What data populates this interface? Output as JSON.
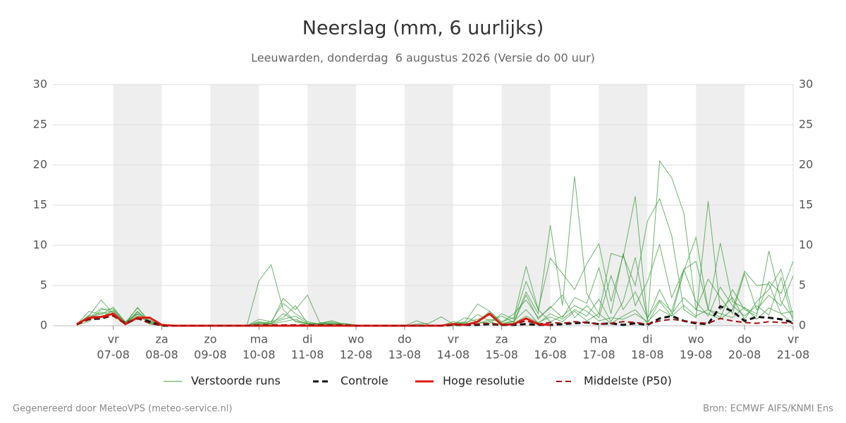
{
  "chart_data": {
    "type": "line",
    "title": "Neerslag (mm, 6 uurlijks)",
    "subtitle": "Leeuwarden, donderdag  6 augustus 2026 (Versie do 00 uur)",
    "footer_left": "Gegenereerd door MeteoVPS (meteo-service.nl)",
    "footer_right": "Bron: ECMWF AIFS/KNMI Ens",
    "categories": [
      null,
      null,
      null,
      "07-08",
      null,
      null,
      null,
      "08-08",
      null,
      null,
      null,
      "09-08",
      null,
      null,
      null,
      "10-08",
      null,
      null,
      null,
      "11-08",
      null,
      null,
      null,
      "12-08",
      null,
      null,
      null,
      "13-08",
      null,
      null,
      null,
      "14-08",
      null,
      null,
      null,
      "15-08",
      null,
      null,
      null,
      "16-08",
      null,
      null,
      null,
      "17-08",
      null,
      null,
      null,
      "18-08",
      null,
      null,
      null,
      "19-08",
      null,
      null,
      null,
      "20-08",
      null,
      null,
      null,
      "21-08"
    ],
    "weekdays": [
      null,
      null,
      null,
      "vr",
      null,
      null,
      null,
      "za",
      null,
      null,
      null,
      "zo",
      null,
      null,
      null,
      "ma",
      null,
      null,
      null,
      "di",
      null,
      null,
      null,
      "wo",
      null,
      null,
      null,
      "do",
      null,
      null,
      null,
      "vr",
      null,
      null,
      null,
      "za",
      null,
      null,
      null,
      "zo",
      null,
      null,
      null,
      "ma",
      null,
      null,
      null,
      "di",
      null,
      null,
      null,
      "wo",
      null,
      null,
      null,
      "do",
      null,
      null,
      null,
      "vr"
    ],
    "ylim": [
      0,
      30
    ],
    "yticks": [
      0,
      5,
      10,
      15,
      20,
      25,
      30
    ],
    "grid": true,
    "ensemble": {
      "name": "Verstoorde runs",
      "color": "#3c9c3c",
      "runs": [
        [
          0.2,
          1.8,
          1.4,
          2.3,
          0.4,
          2.2,
          0.6,
          0,
          0,
          0,
          0,
          0,
          0,
          0,
          0,
          5.6,
          7.6,
          2,
          0.5,
          0.2,
          0.3,
          0.6,
          0.2,
          0.1,
          0,
          0,
          0,
          0,
          0,
          0,
          0,
          0.3,
          0.5,
          2.7,
          1.8,
          0.5,
          1,
          7.4,
          2,
          0.5,
          1.2,
          2.5,
          1.8,
          0.6,
          1,
          0.8,
          1.5,
          0.5,
          20.5,
          18.4,
          14,
          2,
          1.5,
          0.8,
          2,
          6.8,
          5,
          5.2,
          1.5,
          0.3
        ],
        [
          0.1,
          1.2,
          3.2,
          1.5,
          0.2,
          1.8,
          0.3,
          0,
          0,
          0,
          0,
          0,
          0,
          0,
          0,
          0.5,
          0.3,
          3.4,
          2,
          3.8,
          0.4,
          0.2,
          0.3,
          0.1,
          0,
          0,
          0,
          0,
          0.6,
          0.1,
          0,
          0.2,
          0.4,
          0.8,
          1.3,
          0.2,
          0.5,
          4.2,
          1.5,
          12.5,
          2.5,
          18.6,
          4,
          1.5,
          9,
          8.5,
          16.1,
          0.5,
          2,
          1.2,
          6.8,
          11,
          2,
          1,
          4.5,
          2,
          1.2,
          9.3,
          3,
          1
        ],
        [
          0.2,
          0.8,
          1.5,
          1.8,
          0.3,
          1.2,
          0.4,
          0,
          0,
          0,
          0,
          0,
          0,
          0,
          0,
          0.8,
          0.5,
          1,
          2.5,
          0.3,
          0.2,
          0.1,
          0.1,
          0,
          0,
          0,
          0,
          0,
          0.2,
          0.3,
          1.1,
          0.2,
          1,
          0.5,
          0.3,
          1.5,
          0.8,
          5.5,
          2,
          8.4,
          6.5,
          4.5,
          7.7,
          10.2,
          3,
          8.7,
          5,
          13,
          15.8,
          11.2,
          2,
          1,
          15.5,
          2,
          3.5,
          0.8,
          3,
          4.5,
          7,
          1.2
        ],
        [
          0.3,
          1,
          1.7,
          1.2,
          0.2,
          2.3,
          0.2,
          0,
          0,
          0,
          0,
          0,
          0,
          0,
          0,
          0.2,
          0.5,
          2.8,
          1.5,
          0.5,
          0.2,
          0.6,
          0.1,
          0,
          0,
          0,
          0,
          0,
          0,
          0,
          0,
          0.5,
          0.2,
          1.4,
          0.6,
          1.2,
          0.4,
          3.8,
          0.8,
          2.4,
          1,
          3.5,
          2.8,
          7.2,
          1.5,
          9,
          2.5,
          5.5,
          10.1,
          3.5,
          7,
          8,
          2,
          10.3,
          3,
          2.2,
          1.5,
          5.5,
          4,
          8
        ],
        [
          0.1,
          0.5,
          2,
          2.1,
          0.5,
          1.5,
          0.7,
          0,
          0,
          0,
          0,
          0,
          0,
          0,
          0,
          0.1,
          0.3,
          0.8,
          1.2,
          0.3,
          0.2,
          0.3,
          0.1,
          0,
          0,
          0,
          0,
          0,
          0,
          0,
          0,
          0.1,
          0.2,
          0.5,
          1.8,
          0.3,
          0.6,
          2,
          0.3,
          1.5,
          0.8,
          2,
          1.2,
          3.3,
          0.5,
          3,
          8.5,
          0.8,
          4.5,
          1.5,
          3.5,
          2,
          5.8,
          3.5,
          1.5,
          6.5,
          2,
          3.8,
          2.5,
          6.2
        ],
        [
          0.2,
          1.3,
          1,
          1.9,
          0.4,
          1.4,
          0.3,
          0,
          0,
          0,
          0,
          0,
          0,
          0,
          0,
          0.3,
          0.2,
          0.5,
          0.8,
          0.2,
          0.1,
          0.2,
          0,
          0,
          0,
          0,
          0,
          0,
          0,
          0,
          0,
          0,
          0.1,
          0.3,
          0.5,
          0.1,
          0.3,
          1.2,
          0.4,
          1.1,
          0.5,
          1.8,
          0.6,
          1.5,
          0.3,
          1.2,
          2,
          0.3,
          3,
          1.2,
          2.5,
          1.2,
          2,
          1.5,
          1,
          2.3,
          0.8,
          2.2,
          1.5,
          1.8
        ],
        [
          0.2,
          0.9,
          2.2,
          1.6,
          0.1,
          1.7,
          0.5,
          0,
          0,
          0,
          0,
          0,
          0,
          0,
          0,
          0.4,
          0.2,
          1.5,
          0.6,
          0.3,
          0.2,
          0.4,
          0.1,
          0,
          0,
          0,
          0,
          0,
          0,
          0,
          0,
          0.2,
          0.3,
          0.2,
          0.8,
          0.4,
          1.5,
          3.2,
          1,
          2.2,
          3.8,
          1,
          2.5,
          1,
          6.2,
          2,
          4.2,
          1,
          3.2,
          1.8,
          7,
          3,
          1.2,
          4.8,
          2.5,
          1.2,
          2.5,
          1.3,
          6,
          0.5
        ]
      ]
    },
    "series": [
      {
        "name": "Controle",
        "color": "#111111",
        "dash": true,
        "width": 3,
        "values": [
          0.2,
          0.8,
          0.9,
          1.3,
          0.3,
          0.9,
          0.5,
          0,
          0,
          0,
          0,
          0,
          0,
          0,
          0,
          0,
          0,
          0,
          0,
          0,
          0,
          0,
          0,
          0,
          0,
          0,
          0,
          0,
          0,
          0,
          0,
          0.1,
          0.1,
          0.1,
          0.2,
          0.1,
          0.1,
          0.2,
          0.1,
          0.1,
          0.2,
          0.3,
          0.4,
          0.2,
          0.3,
          0.1,
          0.3,
          0.1,
          0.9,
          1.2,
          0.6,
          0.3,
          0.2,
          2.4,
          1.8,
          0.6,
          1.1,
          1,
          0.8,
          0.4
        ]
      },
      {
        "name": "Hoge resolutie",
        "color": "#e01a10",
        "dash": false,
        "width": 3,
        "values": [
          0.2,
          1,
          1.1,
          1.5,
          0.2,
          1,
          1,
          0.1,
          0,
          0,
          0,
          0,
          0,
          0,
          0,
          0,
          0,
          0,
          0,
          0,
          0,
          0,
          0,
          0,
          0,
          0,
          0,
          0,
          0,
          0,
          0,
          0.2,
          0.1,
          0.5,
          1.5,
          0.1,
          0.2,
          0.9,
          0.2,
          0.1,
          null,
          null,
          null,
          null,
          null,
          null,
          null,
          null,
          null,
          null,
          null,
          null,
          null,
          null,
          null,
          null,
          null,
          null,
          null,
          null
        ]
      },
      {
        "name": "Middelste (P50)",
        "color": "#a01010",
        "dash": true,
        "width": 2,
        "values": [
          0.1,
          0.8,
          1,
          1.2,
          0.2,
          0.9,
          0.3,
          0,
          0,
          0,
          0,
          0,
          0,
          0,
          0,
          0.1,
          0.1,
          0.1,
          0.1,
          0.1,
          0.1,
          0.1,
          0.1,
          0,
          0,
          0,
          0,
          0,
          0,
          0,
          0,
          0.1,
          0.1,
          0.2,
          0.3,
          0.1,
          0.2,
          0.6,
          0.2,
          0.4,
          0.3,
          0.5,
          0.4,
          0.2,
          0.3,
          0.5,
          0.4,
          0.2,
          0.6,
          0.8,
          0.6,
          0.4,
          0.3,
          0.9,
          0.6,
          0.4,
          0.3,
          0.5,
          0.4,
          0.3
        ]
      }
    ]
  }
}
